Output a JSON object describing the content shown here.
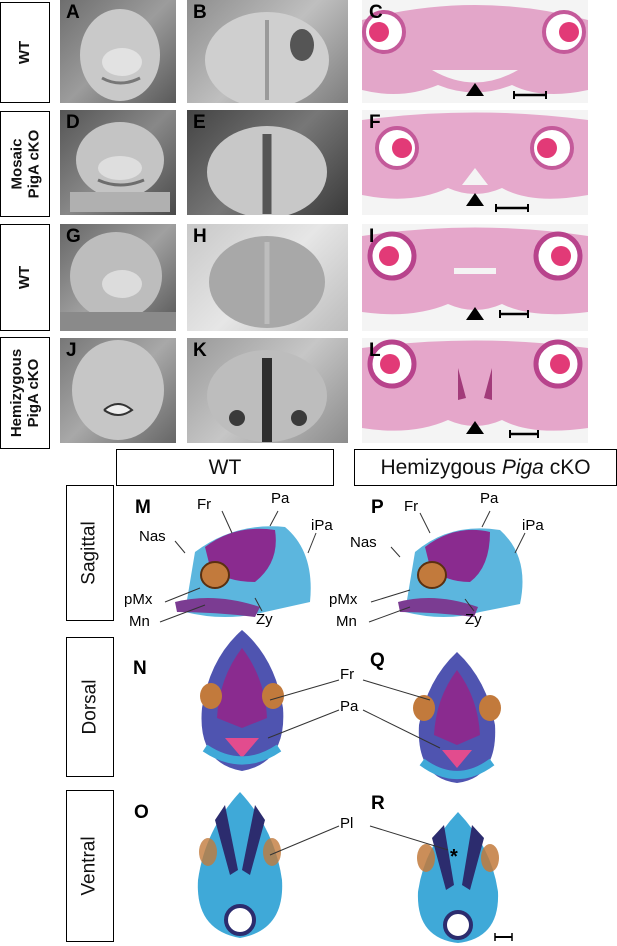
{
  "rows": [
    {
      "label_lines": [
        "WT"
      ],
      "panels": [
        "A",
        "B",
        "C"
      ]
    },
    {
      "label_lines": [
        "Mosaic",
        "PigA cKO"
      ],
      "panels": [
        "D",
        "E",
        "F"
      ]
    },
    {
      "label_lines": [
        "WT"
      ],
      "panels": [
        "G",
        "H",
        "I"
      ]
    },
    {
      "label_lines": [
        "Hemizygous",
        "PigA cKO"
      ],
      "panels": [
        "J",
        "K",
        "L"
      ]
    }
  ],
  "headers": {
    "wt": "WT",
    "hemi_prefix": "Hemizygous ",
    "hemi_italic": "Piga",
    "hemi_suffix": " cKO"
  },
  "views": [
    "Sagittal",
    "Dorsal",
    "Ventral"
  ],
  "skeleton_panels": {
    "left": [
      "M",
      "N",
      "O"
    ],
    "right": [
      "P",
      "Q",
      "R"
    ]
  },
  "bone_labels": {
    "fr": "Fr",
    "pa": "Pa",
    "ipa": "iPa",
    "nas": "Nas",
    "pmx": "pMx",
    "mn": "Mn",
    "zy": "Zy",
    "pl": "Pl",
    "asterisk": "*"
  },
  "colors": {
    "he_pink": "#e8a3c6",
    "he_dark": "#b3367f",
    "alizarin": "#8a2b8f",
    "alcian": "#3fa9d8",
    "sem_gray": "#9a9a9a"
  }
}
